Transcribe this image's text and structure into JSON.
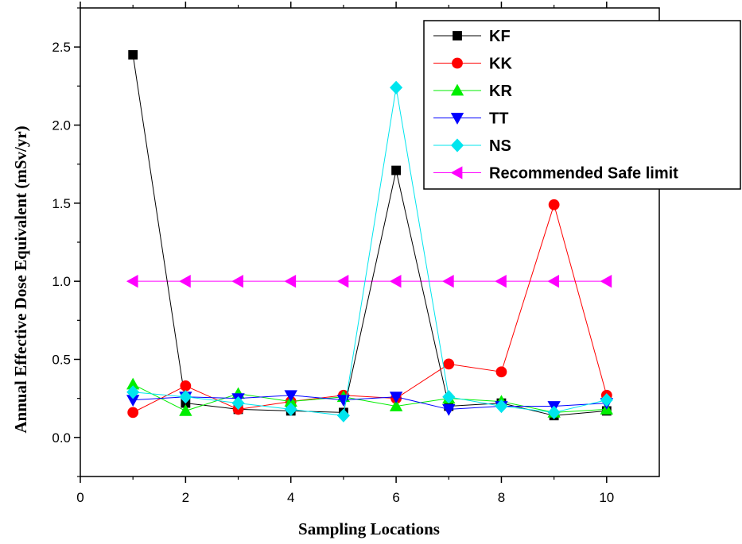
{
  "chart_data": {
    "type": "line",
    "xlabel": "Sampling Locations",
    "ylabel": "Annual Effective Dose Equivalent (mSv/yr)",
    "xlim": [
      0,
      11
    ],
    "ylim": [
      -0.25,
      2.75
    ],
    "x_ticks": [
      0,
      2,
      4,
      6,
      8,
      10
    ],
    "x_tick_labels": [
      "0",
      "2",
      "4",
      "6",
      "8",
      "10"
    ],
    "y_ticks": [
      0,
      0.5,
      1,
      1.5,
      2,
      2.5
    ],
    "y_tick_labels": [
      "0.0",
      "0.5",
      "1.0",
      "1.5",
      "2.0",
      "2.5"
    ],
    "grid": false,
    "legend_position": "top-right",
    "x": [
      1,
      2,
      3,
      4,
      5,
      6,
      7,
      8,
      9,
      10
    ],
    "series": [
      {
        "name": "KF",
        "color": "#000000",
        "marker": "square",
        "values": [
          2.45,
          0.22,
          0.18,
          0.17,
          0.16,
          1.71,
          0.2,
          0.22,
          0.14,
          0.17
        ]
      },
      {
        "name": "KK",
        "color": "#ff0000",
        "marker": "circle",
        "values": [
          0.16,
          0.33,
          0.18,
          0.23,
          0.27,
          0.25,
          0.47,
          0.42,
          1.49,
          0.27
        ]
      },
      {
        "name": "KR",
        "color": "#00ee00",
        "marker": "triangle-up",
        "values": [
          0.34,
          0.17,
          0.28,
          0.23,
          0.26,
          0.2,
          0.25,
          0.23,
          0.16,
          0.18
        ]
      },
      {
        "name": "TT",
        "color": "#0000ff",
        "marker": "triangle-down",
        "values": [
          0.24,
          0.26,
          0.25,
          0.27,
          0.24,
          0.26,
          0.18,
          0.2,
          0.2,
          0.22
        ]
      },
      {
        "name": "NS",
        "color": "#00e5ee",
        "marker": "diamond",
        "values": [
          0.29,
          0.26,
          0.22,
          0.18,
          0.14,
          2.24,
          0.26,
          0.2,
          0.16,
          0.24
        ]
      },
      {
        "name": "Recommended Safe limit",
        "color": "#ff00ff",
        "marker": "triangle-left",
        "values": [
          1.0,
          1.0,
          1.0,
          1.0,
          1.0,
          1.0,
          1.0,
          1.0,
          1.0,
          1.0
        ]
      }
    ]
  }
}
